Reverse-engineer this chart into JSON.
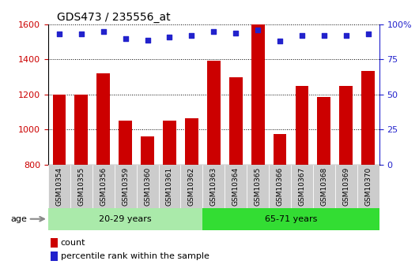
{
  "title": "GDS473 / 235556_at",
  "samples": [
    "GSM10354",
    "GSM10355",
    "GSM10356",
    "GSM10359",
    "GSM10360",
    "GSM10361",
    "GSM10362",
    "GSM10363",
    "GSM10364",
    "GSM10365",
    "GSM10366",
    "GSM10367",
    "GSM10368",
    "GSM10369",
    "GSM10370"
  ],
  "counts": [
    1200,
    1200,
    1320,
    1050,
    960,
    1050,
    1065,
    1395,
    1300,
    1600,
    975,
    1250,
    1185,
    1250,
    1335
  ],
  "percentile_ranks": [
    93,
    93,
    95,
    90,
    89,
    91,
    92,
    95,
    94,
    96,
    88,
    92,
    92,
    92,
    93
  ],
  "groups": [
    {
      "label": "20-29 years",
      "start": 0,
      "end": 7,
      "color": "#aaeaaa"
    },
    {
      "label": "65-71 years",
      "start": 7,
      "end": 15,
      "color": "#33dd33"
    }
  ],
  "ylim_left": [
    800,
    1600
  ],
  "ylim_right": [
    0,
    100
  ],
  "yticks_left": [
    800,
    1000,
    1200,
    1400,
    1600
  ],
  "yticks_right": [
    0,
    25,
    50,
    75,
    100
  ],
  "bar_color": "#cc0000",
  "dot_color": "#2222cc",
  "bar_bottom": 800,
  "tick_label_bg": "#cccccc",
  "age_label": "age",
  "legend_count": "count",
  "legend_percentile": "percentile rank within the sample",
  "left_tick_color": "#cc0000",
  "right_tick_color": "#2222cc"
}
